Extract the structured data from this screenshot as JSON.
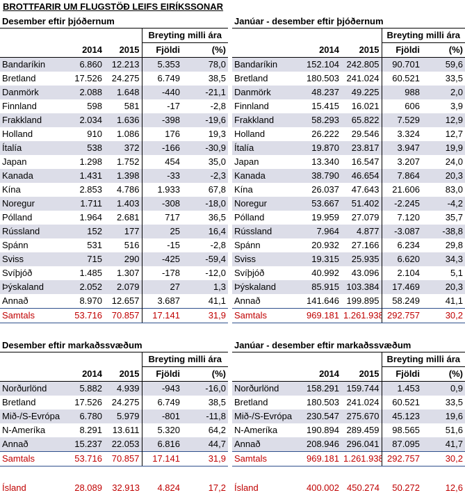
{
  "title": "BROTTFARIR UM FLUGSTÖÐ LEIFS EIRÍKSSONAR",
  "headers": {
    "y2014": "2014",
    "y2015": "2015",
    "change": "Breyting milli ára",
    "count": "Fjöldi",
    "pct": "(%)"
  },
  "table1": {
    "caption": "Desember eftir þjóðernum",
    "rows": [
      {
        "name": "Bandaríkin",
        "a": "6.860",
        "b": "12.213",
        "c": "5.353",
        "d": "78,0"
      },
      {
        "name": "Bretland",
        "a": "17.526",
        "b": "24.275",
        "c": "6.749",
        "d": "38,5"
      },
      {
        "name": "Danmörk",
        "a": "2.088",
        "b": "1.648",
        "c": "-440",
        "d": "-21,1"
      },
      {
        "name": "Finnland",
        "a": "598",
        "b": "581",
        "c": "-17",
        "d": "-2,8"
      },
      {
        "name": "Frakkland",
        "a": "2.034",
        "b": "1.636",
        "c": "-398",
        "d": "-19,6"
      },
      {
        "name": "Holland",
        "a": "910",
        "b": "1.086",
        "c": "176",
        "d": "19,3"
      },
      {
        "name": "Ítalía",
        "a": "538",
        "b": "372",
        "c": "-166",
        "d": "-30,9"
      },
      {
        "name": "Japan",
        "a": "1.298",
        "b": "1.752",
        "c": "454",
        "d": "35,0"
      },
      {
        "name": "Kanada",
        "a": "1.431",
        "b": "1.398",
        "c": "-33",
        "d": "-2,3"
      },
      {
        "name": "Kína",
        "a": "2.853",
        "b": "4.786",
        "c": "1.933",
        "d": "67,8"
      },
      {
        "name": "Noregur",
        "a": "1.711",
        "b": "1.403",
        "c": "-308",
        "d": "-18,0"
      },
      {
        "name": "Pólland",
        "a": "1.964",
        "b": "2.681",
        "c": "717",
        "d": "36,5"
      },
      {
        "name": "Rússland",
        "a": "152",
        "b": "177",
        "c": "25",
        "d": "16,4"
      },
      {
        "name": "Spánn",
        "a": "531",
        "b": "516",
        "c": "-15",
        "d": "-2,8"
      },
      {
        "name": "Sviss",
        "a": "715",
        "b": "290",
        "c": "-425",
        "d": "-59,4"
      },
      {
        "name": "Svíþjóð",
        "a": "1.485",
        "b": "1.307",
        "c": "-178",
        "d": "-12,0"
      },
      {
        "name": "Þýskaland",
        "a": "2.052",
        "b": "2.079",
        "c": "27",
        "d": "1,3"
      },
      {
        "name": "Annað",
        "a": "8.970",
        "b": "12.657",
        "c": "3.687",
        "d": "41,1"
      }
    ],
    "total": {
      "name": "Samtals",
      "a": "53.716",
      "b": "70.857",
      "c": "17.141",
      "d": "31,9"
    }
  },
  "table2": {
    "caption": "Janúar - desember eftir þjóðernum",
    "rows": [
      {
        "name": "Bandaríkin",
        "a": "152.104",
        "b": "242.805",
        "c": "90.701",
        "d": "59,6"
      },
      {
        "name": "Bretland",
        "a": "180.503",
        "b": "241.024",
        "c": "60.521",
        "d": "33,5"
      },
      {
        "name": "Danmörk",
        "a": "48.237",
        "b": "49.225",
        "c": "988",
        "d": "2,0"
      },
      {
        "name": "Finnland",
        "a": "15.415",
        "b": "16.021",
        "c": "606",
        "d": "3,9"
      },
      {
        "name": "Frakkland",
        "a": "58.293",
        "b": "65.822",
        "c": "7.529",
        "d": "12,9"
      },
      {
        "name": "Holland",
        "a": "26.222",
        "b": "29.546",
        "c": "3.324",
        "d": "12,7"
      },
      {
        "name": "Ítalía",
        "a": "19.870",
        "b": "23.817",
        "c": "3.947",
        "d": "19,9"
      },
      {
        "name": "Japan",
        "a": "13.340",
        "b": "16.547",
        "c": "3.207",
        "d": "24,0"
      },
      {
        "name": "Kanada",
        "a": "38.790",
        "b": "46.654",
        "c": "7.864",
        "d": "20,3"
      },
      {
        "name": "Kína",
        "a": "26.037",
        "b": "47.643",
        "c": "21.606",
        "d": "83,0"
      },
      {
        "name": "Noregur",
        "a": "53.667",
        "b": "51.402",
        "c": "-2.245",
        "d": "-4,2"
      },
      {
        "name": "Pólland",
        "a": "19.959",
        "b": "27.079",
        "c": "7.120",
        "d": "35,7"
      },
      {
        "name": "Rússland",
        "a": "7.964",
        "b": "4.877",
        "c": "-3.087",
        "d": "-38,8"
      },
      {
        "name": "Spánn",
        "a": "20.932",
        "b": "27.166",
        "c": "6.234",
        "d": "29,8"
      },
      {
        "name": "Sviss",
        "a": "19.315",
        "b": "25.935",
        "c": "6.620",
        "d": "34,3"
      },
      {
        "name": "Svíþjóð",
        "a": "40.992",
        "b": "43.096",
        "c": "2.104",
        "d": "5,1"
      },
      {
        "name": "Þýskaland",
        "a": "85.915",
        "b": "103.384",
        "c": "17.469",
        "d": "20,3"
      },
      {
        "name": "Annað",
        "a": "141.646",
        "b": "199.895",
        "c": "58.249",
        "d": "41,1"
      }
    ],
    "total": {
      "name": "Samtals",
      "a": "969.181",
      "b": "1.261.938",
      "c": "292.757",
      "d": "30,2"
    }
  },
  "table3": {
    "caption": "Desember eftir markaðssvæðum",
    "rows": [
      {
        "name": "Norðurlönd",
        "a": "5.882",
        "b": "4.939",
        "c": "-943",
        "d": "-16,0"
      },
      {
        "name": "Bretland",
        "a": "17.526",
        "b": "24.275",
        "c": "6.749",
        "d": "38,5"
      },
      {
        "name": "Mið-/S-Evrópa",
        "a": "6.780",
        "b": "5.979",
        "c": "-801",
        "d": "-11,8"
      },
      {
        "name": "N-Ameríka",
        "a": "8.291",
        "b": "13.611",
        "c": "5.320",
        "d": "64,2"
      },
      {
        "name": "Annað",
        "a": "15.237",
        "b": "22.053",
        "c": "6.816",
        "d": "44,7"
      }
    ],
    "total": {
      "name": "Samtals",
      "a": "53.716",
      "b": "70.857",
      "c": "17.141",
      "d": "31,9"
    }
  },
  "table4": {
    "caption": "Janúar - desember eftir markaðssvæðum",
    "rows": [
      {
        "name": "Norðurlönd",
        "a": "158.291",
        "b": "159.744",
        "c": "1.453",
        "d": "0,9"
      },
      {
        "name": "Bretland",
        "a": "180.503",
        "b": "241.024",
        "c": "60.521",
        "d": "33,5"
      },
      {
        "name": "Mið-/S-Evrópa",
        "a": "230.547",
        "b": "275.670",
        "c": "45.123",
        "d": "19,6"
      },
      {
        "name": "N-Ameríka",
        "a": "190.894",
        "b": "289.459",
        "c": "98.565",
        "d": "51,6"
      },
      {
        "name": "Annað",
        "a": "208.946",
        "b": "296.041",
        "c": "87.095",
        "d": "41,7"
      }
    ],
    "total": {
      "name": "Samtals",
      "a": "969.181",
      "b": "1.261.938",
      "c": "292.757",
      "d": "30,2"
    }
  },
  "iceland_left": {
    "name": "Ísland",
    "a": "28.089",
    "b": "32.913",
    "c": "4.824",
    "d": "17,2"
  },
  "iceland_right": {
    "name": "Ísland",
    "a": "400.002",
    "b": "450.274",
    "c": "50.272",
    "d": "12,6"
  }
}
